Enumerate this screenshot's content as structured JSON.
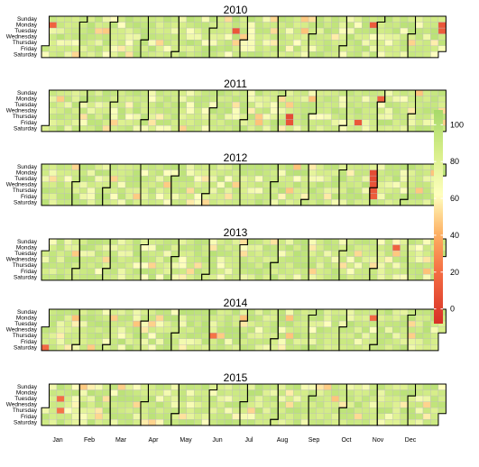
{
  "chart_data": {
    "type": "heatmap",
    "title": "",
    "years": [
      "2010",
      "2011",
      "2012",
      "2013",
      "2014",
      "2015"
    ],
    "day_labels": [
      "Sunday",
      "Monday",
      "Tuesday",
      "Wednesday",
      "Thursday",
      "Friday",
      "Saturday"
    ],
    "month_labels": [
      "Jan",
      "Feb",
      "Mar",
      "Apr",
      "May",
      "Jun",
      "Jul",
      "Aug",
      "Sep",
      "Oct",
      "Nov",
      "Dec"
    ],
    "colorbar": {
      "range": [
        -8,
        108
      ],
      "ticks": [
        0,
        20,
        40,
        60,
        80,
        100
      ],
      "tick_labels": [
        "0",
        "20",
        "40",
        "60",
        "80",
        "100"
      ],
      "stops": [
        {
          "value": -8,
          "color": "#d73027"
        },
        {
          "value": 20,
          "color": "#f46d43"
        },
        {
          "value": 40,
          "color": "#fdae61"
        },
        {
          "value": 62,
          "color": "#ffffbf"
        },
        {
          "value": 84,
          "color": "#d9ef8b"
        },
        {
          "value": 108,
          "color": "#a6d96a"
        }
      ]
    },
    "typical_value": 92,
    "low_value_cells": [
      {
        "year": "2010",
        "date": "2010-01-04",
        "value": 15
      },
      {
        "year": "2010",
        "date": "2010-06-22",
        "value": 10
      },
      {
        "year": "2010",
        "date": "2010-10-25",
        "value": 12
      },
      {
        "year": "2010",
        "date": "2010-12-27",
        "value": 10
      },
      {
        "year": "2010",
        "date": "2010-12-28",
        "value": 12
      },
      {
        "year": "2011",
        "date": "2011-08-11",
        "value": 5
      },
      {
        "year": "2011",
        "date": "2011-08-12",
        "value": 8
      },
      {
        "year": "2011",
        "date": "2011-10-14",
        "value": 10
      },
      {
        "year": "2011",
        "date": "2011-10-31",
        "value": 15
      },
      {
        "year": "2012",
        "date": "2012-10-29",
        "value": 5
      },
      {
        "year": "2012",
        "date": "2012-10-30",
        "value": 5
      },
      {
        "year": "2012",
        "date": "2012-10-31",
        "value": 8
      },
      {
        "year": "2012",
        "date": "2012-11-01",
        "value": 10
      },
      {
        "year": "2012",
        "date": "2012-11-02",
        "value": 12
      },
      {
        "year": "2013",
        "date": "2013-11-18",
        "value": 15
      },
      {
        "year": "2014",
        "date": "2014-10-27",
        "value": 18
      },
      {
        "year": "2014",
        "date": "2014-06-05",
        "value": 22
      },
      {
        "year": "2014",
        "date": "2014-01-04",
        "value": 18
      },
      {
        "year": "2015",
        "date": "2015-01-13",
        "value": 20
      },
      {
        "year": "2015",
        "date": "2015-01-15",
        "value": 22
      }
    ],
    "grid": false,
    "legend_position": "right"
  }
}
